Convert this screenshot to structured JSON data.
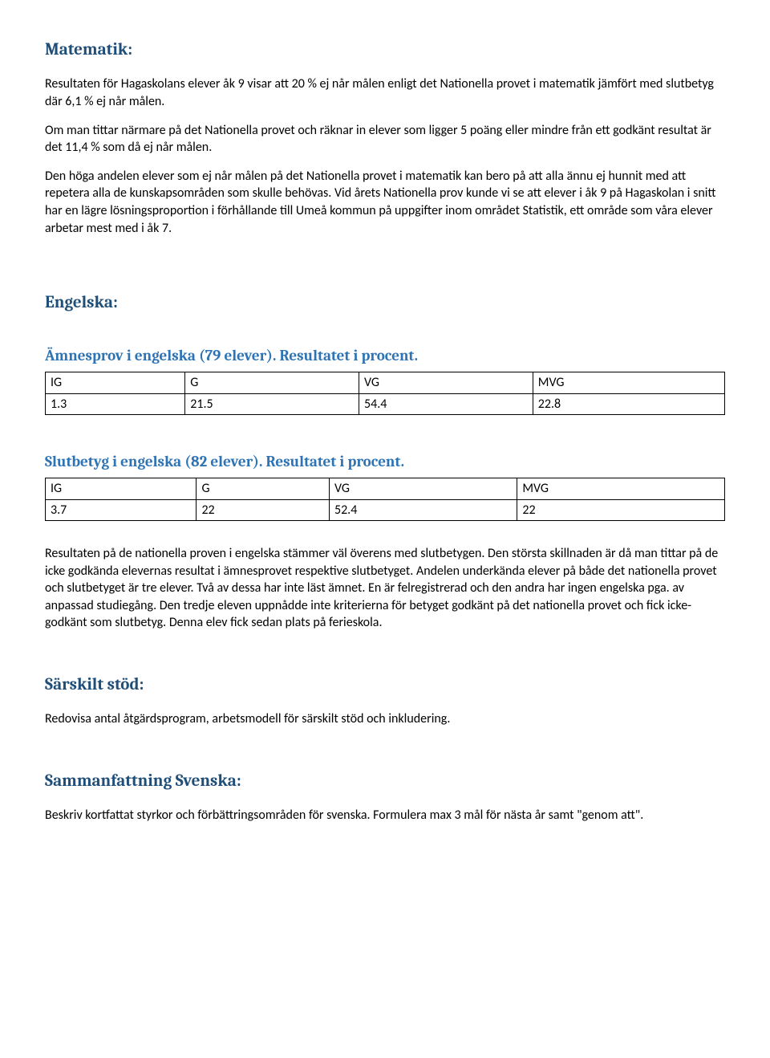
{
  "matematik": {
    "heading": "Matematik:",
    "p1": "Resultaten för Hagaskolans elever åk 9 visar att 20 % ej når målen enligt det Nationella provet i matematik jämfört med slutbetyg där 6,1 % ej når målen.",
    "p2": "Om man tittar närmare på det Nationella provet och räknar in elever som ligger 5 poäng eller mindre från ett godkänt resultat är det 11,4 % som då ej når målen.",
    "p3": "Den höga andelen elever som ej når målen på det Nationella provet i matematik kan bero på att alla ännu ej hunnit med att repetera alla de kunskapsområden som skulle behövas. Vid årets Nationella prov kunde vi se att elever i åk 9 på Hagaskolan i snitt har en lägre lösningsproportion i förhållande till Umeå kommun på uppgifter inom området Statistik, ett område som våra elever arbetar mest med i åk 7."
  },
  "engelska": {
    "heading": "Engelska:",
    "amnesprov_heading": "Ämnesprov i engelska (79 elever). Resultatet i procent.",
    "table1": {
      "headers": [
        "IG",
        "G",
        "VG",
        "MVG"
      ],
      "row": [
        "1.3",
        "21.5",
        "54.4",
        "22.8"
      ]
    },
    "slutbetyg_heading": "Slutbetyg i engelska (82 elever).  Resultatet i procent.",
    "table2": {
      "headers": [
        "IG",
        "G",
        "VG",
        "MVG"
      ],
      "row": [
        "3.7",
        "22",
        "52.4",
        "22"
      ]
    },
    "p1": "Resultaten på de nationella proven i engelska stämmer väl överens med slutbetygen. Den största skillnaden är då man tittar på de icke godkända elevernas resultat i ämnesprovet respektive slutbetyget. Andelen underkända elever på både det nationella provet och slutbetyget är tre elever. Två av dessa har inte läst ämnet. En är felregistrerad och den andra har ingen engelska pga. av anpassad studiegång. Den tredje eleven uppnådde inte kriterierna för betyget godkänt på det nationella provet och fick icke-godkänt som slutbetyg. Denna elev fick sedan plats på ferieskola."
  },
  "sarskilt": {
    "heading": "Särskilt stöd:",
    "p1": "Redovisa antal åtgärdsprogram, arbetsmodell för särskilt stöd och inkludering."
  },
  "svenska": {
    "heading": "Sammanfattning Svenska:",
    "p1": "Beskriv kortfattat styrkor och förbättringsområden för svenska. Formulera max 3 mål för nästa år samt \"genom att\"."
  },
  "colors": {
    "heading_h2": "#1f4e79",
    "heading_h3": "#2e74b5",
    "text": "#000000",
    "background": "#ffffff",
    "table_border": "#000000"
  },
  "typography": {
    "heading_font": "Cambria",
    "body_font": "Calibri",
    "h2_size_pt": 16,
    "h3_size_pt": 14,
    "body_size_pt": 12
  }
}
